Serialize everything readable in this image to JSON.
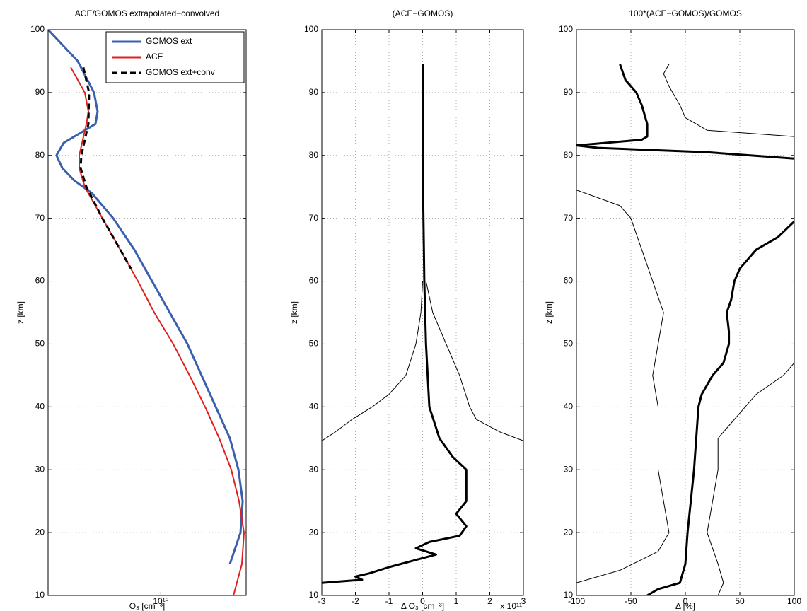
{
  "chart_data": [
    {
      "type": "line",
      "title": "ACE/GOMOS extrapolated−convolved",
      "x_label": "O₃ [cm⁻³]",
      "y_label": "z [km]",
      "x_scale": "log",
      "xlim": [
        4000000000,
        20000000000
      ],
      "xticks": [
        {
          "value": 10000000000,
          "label": "10¹⁰"
        }
      ],
      "ylim": [
        10,
        100
      ],
      "yticks": [
        10,
        20,
        30,
        40,
        50,
        60,
        70,
        80,
        90,
        100
      ],
      "grid": true,
      "legend": "northeast",
      "series": [
        {
          "name": "GOMOS ext",
          "color": "#3a5fad",
          "width": 3,
          "x": [
            4000000000,
            5090000000,
            5810000000,
            5980000000,
            5880000000,
            4540000000,
            4280000000,
            4490000000,
            4950000000,
            5710000000,
            6790000000,
            8060000000,
            9310000000,
            10750000000,
            12410000000,
            13920000000,
            15620000000,
            17520000000,
            18780000000,
            19440000000,
            19100000000,
            17520000000
          ],
          "y": [
            100,
            95,
            90,
            87,
            85,
            82,
            80,
            78,
            76,
            74,
            70,
            65,
            60,
            55,
            50,
            45,
            40,
            35,
            30,
            25,
            20,
            15
          ]
        },
        {
          "name": "ACE",
          "color": "#e02020",
          "width": 2,
          "x": [
            4810000000,
            5390000000,
            5550000000,
            5460000000,
            5150000000,
            5150000000,
            5390000000,
            6220000000,
            7190000000,
            8300000000,
            9480000000,
            11060000000,
            12630000000,
            14330000000,
            16080000000,
            17730000000,
            18880000000,
            19660000000,
            19320000000,
            18040000000
          ],
          "y": [
            94,
            90,
            87,
            85,
            80,
            78,
            75,
            70,
            65,
            60,
            55,
            50,
            45,
            40,
            35,
            30,
            25,
            20,
            15,
            10
          ]
        },
        {
          "name": "GOMOS ext+conv",
          "color": "#000000",
          "width": 3,
          "dash": true,
          "x": [
            5330000000,
            5580000000,
            5550000000,
            5240000000,
            5210000000,
            5460000000,
            6220000000,
            7190000000,
            7840000000
          ],
          "y": [
            94,
            90,
            85,
            80,
            78,
            75,
            70,
            65,
            62
          ]
        }
      ]
    },
    {
      "type": "line",
      "title": "(ACE−GOMOS)",
      "x_label": "Δ O₃ [cm⁻³]",
      "y_label": "z [km]",
      "x_multiplier": "x 10¹¹",
      "xlim": [
        -3,
        3
      ],
      "xticks": [
        -3,
        -2,
        -1,
        0,
        1,
        2,
        3
      ],
      "ylim": [
        10,
        100
      ],
      "yticks": [
        10,
        20,
        30,
        40,
        50,
        60,
        70,
        80,
        90,
        100
      ],
      "grid": true,
      "series": [
        {
          "color": "#000000",
          "width": 3,
          "x": [
            0,
            0,
            0.05,
            0.1,
            0.2,
            0.5,
            0.9,
            1.3,
            1.3,
            1.3,
            1.0,
            1.3,
            1.1,
            0.2,
            -0.2,
            0.4,
            -0.3,
            -1.0,
            -1.6,
            -2.0,
            -1.8,
            -3
          ],
          "y": [
            94.5,
            80,
            60,
            50,
            40,
            35,
            32,
            30,
            28,
            25,
            23,
            21,
            19.5,
            18.5,
            17.5,
            16.5,
            15.5,
            14.5,
            13.5,
            13,
            12.5,
            12
          ]
        },
        {
          "color": "#000000",
          "width": 1,
          "x": [
            0.1,
            0.3,
            0.7,
            1.1,
            1.4,
            1.6,
            2.3,
            3
          ],
          "y": [
            60,
            55,
            50,
            45,
            40,
            38,
            36,
            34.6
          ]
        },
        {
          "color": "#000000",
          "width": 1,
          "x": [
            0,
            -0.05,
            -0.2,
            -0.5,
            -1.0,
            -1.5,
            -2.1,
            -2.6,
            -3
          ],
          "y": [
            60,
            55,
            50,
            45,
            42,
            40,
            38,
            36,
            34.6
          ]
        }
      ]
    },
    {
      "type": "line",
      "title": "100*(ACE−GOMOS)/GOMOS",
      "x_label": "Δ [%]",
      "y_label": "z [km]",
      "xlim": [
        -100,
        100
      ],
      "xticks": [
        -100,
        -50,
        0,
        50,
        100
      ],
      "ylim": [
        10,
        100
      ],
      "yticks": [
        10,
        20,
        30,
        40,
        50,
        60,
        70,
        80,
        90,
        100
      ],
      "grid": true,
      "series": [
        {
          "color": "#000000",
          "width": 3,
          "x": [
            -60,
            -55,
            -45,
            -40,
            -35,
            -35,
            -40,
            -100,
            -80,
            20,
            100,
            null,
            100,
            85,
            65,
            50,
            45,
            42,
            38,
            40,
            40,
            35,
            25,
            15,
            12,
            10,
            8,
            5,
            2,
            0,
            -5,
            -25,
            -35
          ],
          "y": [
            94.5,
            92,
            90,
            88,
            85,
            83,
            82.5,
            81.6,
            81.2,
            80.5,
            79.5,
            null,
            69.5,
            67,
            65,
            62,
            60,
            57,
            55,
            52,
            50,
            47,
            45,
            42,
            40,
            35,
            30,
            25,
            20,
            15,
            12,
            11,
            10
          ]
        },
        {
          "color": "#000000",
          "width": 1,
          "x": [
            -15,
            -20,
            -15,
            -5,
            0,
            20,
            100
          ],
          "y": [
            94.5,
            93,
            91,
            88,
            86,
            84,
            83
          ]
        },
        {
          "color": "#000000",
          "width": 1,
          "x": [
            -100,
            -60,
            -50,
            -40,
            -30,
            -20,
            -25,
            -30,
            -25,
            -25,
            -25,
            -20,
            -15,
            -25,
            -60,
            -100
          ],
          "y": [
            74.5,
            72,
            70,
            65,
            60,
            55,
            50,
            45,
            40,
            35,
            30,
            25,
            20,
            17,
            14,
            12
          ]
        },
        {
          "color": "#000000",
          "width": 1,
          "x": [
            100,
            90,
            65,
            55,
            40,
            30,
            30,
            25,
            20,
            30,
            35,
            30
          ],
          "y": [
            47,
            45,
            42,
            40,
            37,
            35,
            30,
            25,
            20,
            15,
            12,
            10
          ]
        }
      ]
    }
  ]
}
